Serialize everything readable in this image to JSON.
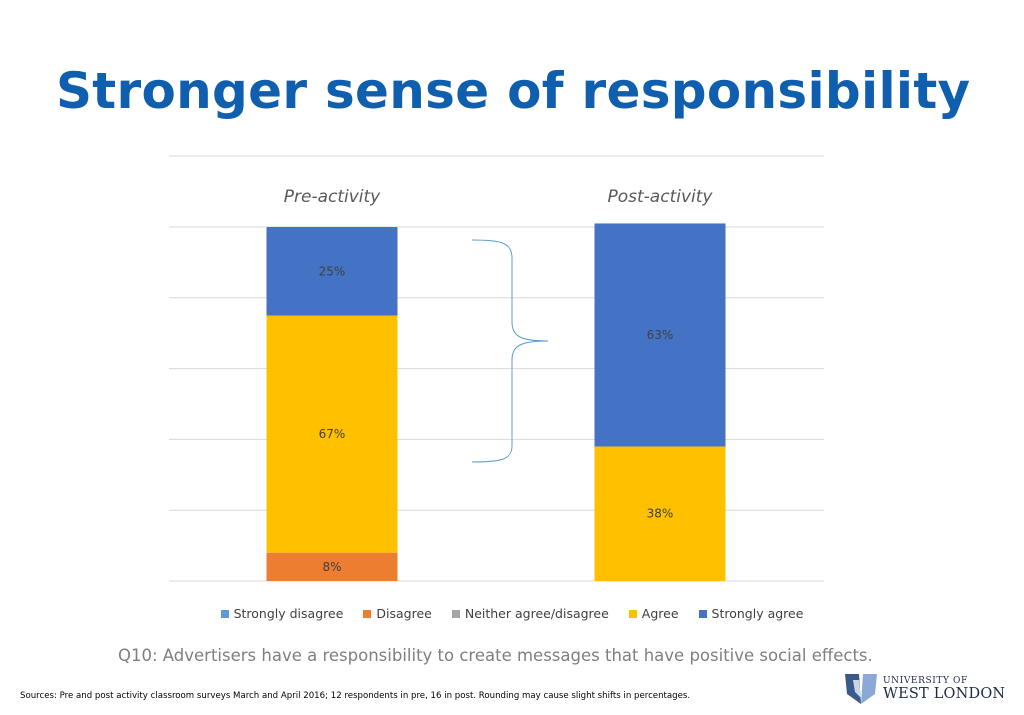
{
  "slide": {
    "title": "Stronger sense of responsibility",
    "question": "Q10: Advertisers have a responsibility to create messages that have positive social effects.",
    "sources": "Sources: Pre and post activity classroom surveys March and April 2016; 12 respondents in pre, 16 in post. Rounding may cause slight  shifts in percentages.",
    "logo": {
      "line1": "UNIVERSITY OF",
      "line2": "WEST LONDON"
    }
  },
  "chart_data": {
    "type": "bar",
    "stacked": true,
    "categories": [
      "Pre-activity",
      "Post-activity"
    ],
    "category_labels_position": "top",
    "ylim": [
      0,
      100
    ],
    "y_tick_step": 20,
    "y_axis_labels_visible": false,
    "grid": true,
    "legend_position": "bottom",
    "series": [
      {
        "name": "Strongly disagree",
        "values": [
          0,
          0
        ],
        "labels": [
          "",
          ""
        ],
        "color": "#5b9bd5"
      },
      {
        "name": "Disagree",
        "values": [
          8,
          0
        ],
        "labels": [
          "8%",
          ""
        ],
        "color": "#ed7d31"
      },
      {
        "name": "Neither agree/disagree",
        "values": [
          0,
          0
        ],
        "labels": [
          "",
          ""
        ],
        "color": "#a5a5a5"
      },
      {
        "name": "Agree",
        "values": [
          67,
          38
        ],
        "labels": [
          "67%",
          "38%"
        ],
        "color": "#ffc000"
      },
      {
        "name": "Strongly agree",
        "values": [
          25,
          63
        ],
        "labels": [
          "25%",
          "63%"
        ],
        "color": "#4472c4"
      }
    ]
  }
}
